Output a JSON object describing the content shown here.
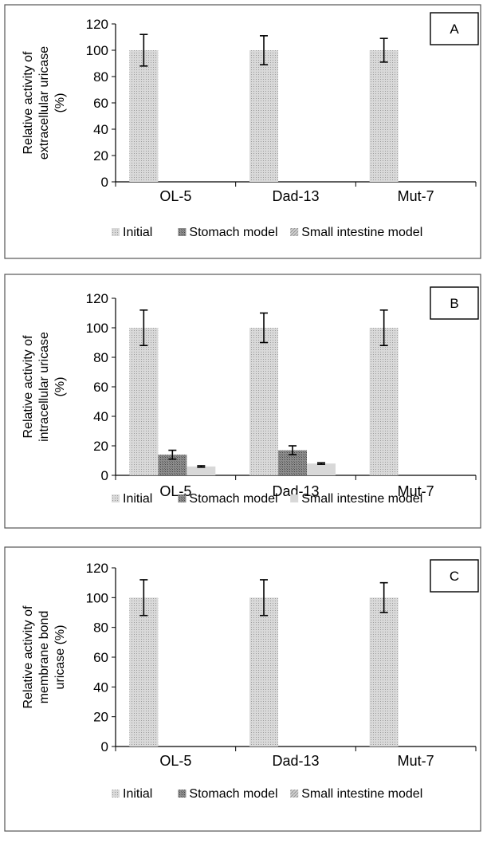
{
  "chart_data": [
    {
      "type": "bar",
      "panel_label": "A",
      "ylabel": [
        "Relative activity of",
        "extracellular uricase",
        "(%)"
      ],
      "categories": [
        "OL-5",
        "Dad-13",
        "Mut-7"
      ],
      "ylim": [
        0,
        120
      ],
      "yticks": [
        "0",
        "20",
        "40",
        "60",
        "80",
        "100",
        "120"
      ],
      "series": [
        {
          "name": "Initial",
          "values": [
            100,
            100,
            100
          ],
          "errors": [
            12,
            11,
            9
          ]
        },
        {
          "name": "Stomach  model",
          "values": [
            0,
            0,
            0
          ],
          "errors": [
            0,
            0,
            0
          ]
        },
        {
          "name": "Small intestine model",
          "values": [
            0,
            0,
            0
          ],
          "errors": [
            0,
            0,
            0
          ]
        }
      ],
      "grid": false,
      "legend_position": "bottom"
    },
    {
      "type": "bar",
      "panel_label": "B",
      "ylabel": [
        "Relative activity of",
        "intracellular uricase",
        "(%)"
      ],
      "categories": [
        "OL-5",
        "Dad-13",
        "Mut-7"
      ],
      "ylim": [
        0,
        120
      ],
      "yticks": [
        "0",
        "20",
        "40",
        "60",
        "80",
        "100",
        "120"
      ],
      "series": [
        {
          "name": "Initial",
          "values": [
            100,
            100,
            100
          ],
          "errors": [
            12,
            10,
            12
          ]
        },
        {
          "name": "Stomach  model",
          "values": [
            14,
            17,
            0
          ],
          "errors": [
            3,
            3,
            0
          ]
        },
        {
          "name": "Small intestine model",
          "values": [
            6,
            8,
            0
          ],
          "errors": [
            0.5,
            0.5,
            0
          ]
        }
      ],
      "grid": false,
      "legend_position": "bottom"
    },
    {
      "type": "bar",
      "panel_label": "C",
      "ylabel": [
        "Relative activity of",
        "membrane bond",
        "uricase (%)"
      ],
      "categories": [
        "OL-5",
        "Dad-13",
        "Mut-7"
      ],
      "ylim": [
        0,
        120
      ],
      "yticks": [
        "0",
        "20",
        "40",
        "60",
        "80",
        "100",
        "120"
      ],
      "series": [
        {
          "name": "Initial",
          "values": [
            100,
            100,
            100
          ],
          "errors": [
            12,
            12,
            10
          ]
        },
        {
          "name": "Stomach  model",
          "values": [
            0,
            0,
            0
          ],
          "errors": [
            0,
            0,
            0
          ]
        },
        {
          "name": "Small intestine model",
          "values": [
            0,
            0,
            0
          ],
          "errors": [
            0,
            0,
            0
          ]
        }
      ],
      "grid": false,
      "legend_position": "bottom"
    }
  ],
  "style": {
    "frame_color": "#555555",
    "axis_color": "#000000",
    "initial_color": "#d6d6d6",
    "stomach_color": "#8a8a8a",
    "small_intestine_color": "#c4c4c4"
  }
}
